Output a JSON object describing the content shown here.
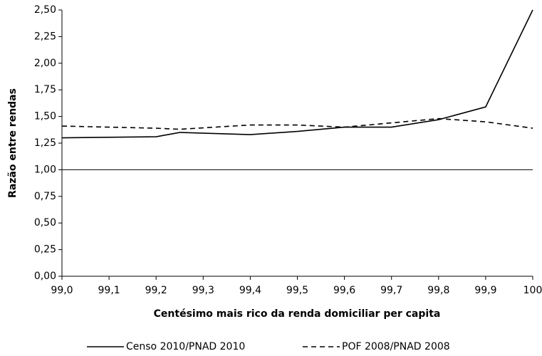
{
  "chart_data": {
    "type": "line",
    "xlabel": "Centésimo mais rico da renda domiciliar per capita",
    "ylabel": "Razão entre rendas",
    "x": [
      99.0,
      99.2,
      99.25,
      99.4,
      99.5,
      99.6,
      99.7,
      99.8,
      99.9,
      100
    ],
    "series": [
      {
        "name": "Censo 2010/PNAD 2010",
        "color": "#000000",
        "dash": "solid",
        "values": [
          1.3,
          1.31,
          1.35,
          1.33,
          1.36,
          1.4,
          1.4,
          1.47,
          1.59,
          2.5
        ]
      },
      {
        "name": "POF 2008/PNAD 2008",
        "color": "#000000",
        "dash": "dashed",
        "values": [
          1.41,
          1.39,
          1.38,
          1.42,
          1.42,
          1.4,
          1.44,
          1.48,
          1.45,
          1.39
        ]
      }
    ],
    "xlim": [
      99.0,
      100
    ],
    "xticks": [
      {
        "value": 99.0,
        "label": "99,0"
      },
      {
        "value": 99.1,
        "label": "99,1"
      },
      {
        "value": 99.2,
        "label": "99,2"
      },
      {
        "value": 99.3,
        "label": "99,3"
      },
      {
        "value": 99.4,
        "label": "99,4"
      },
      {
        "value": 99.5,
        "label": "99,5"
      },
      {
        "value": 99.6,
        "label": "99,6"
      },
      {
        "value": 99.7,
        "label": "99,7"
      },
      {
        "value": 99.8,
        "label": "99,8"
      },
      {
        "value": 99.9,
        "label": "99,9"
      },
      100
    ],
    "ylim": [
      0,
      2.5
    ],
    "yticks": [
      {
        "value": 0,
        "label": "0,00"
      },
      {
        "value": 0.25,
        "label": "0,25"
      },
      {
        "value": 0.5,
        "label": "0,50"
      },
      {
        "value": 0.75,
        "label": "0,75"
      },
      {
        "value": 1,
        "label": "1,00"
      },
      {
        "value": 1.25,
        "label": "1,25"
      },
      {
        "value": 1.5,
        "label": "1,50"
      },
      {
        "value": 1.75,
        "label": "1,75"
      },
      {
        "value": 2,
        "label": "2,00"
      },
      {
        "value": 2.25,
        "label": "2,25"
      },
      {
        "value": 2.5,
        "label": "2,50"
      }
    ],
    "reference_line": 1,
    "grid": false,
    "legend": "bottom"
  }
}
